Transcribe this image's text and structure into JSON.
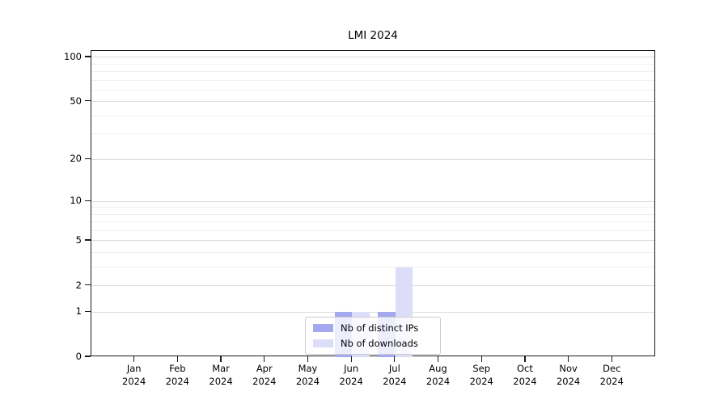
{
  "chart_data": {
    "type": "bar",
    "title": "LMI 2024",
    "categories": [
      "Jan\n2024",
      "Feb\n2024",
      "Mar\n2024",
      "Apr\n2024",
      "May\n2024",
      "Jun\n2024",
      "Jul\n2024",
      "Aug\n2024",
      "Sep\n2024",
      "Oct\n2024",
      "Nov\n2024",
      "Dec\n2024"
    ],
    "series": [
      {
        "name": "Nb of distinct IPs",
        "color": "#a4a8ee",
        "values": [
          0,
          0,
          0,
          0,
          0,
          1,
          1,
          0,
          0,
          0,
          0,
          0
        ]
      },
      {
        "name": "Nb of downloads",
        "color": "#dcddf9",
        "values": [
          0,
          0,
          0,
          0,
          0,
          1,
          3,
          0,
          0,
          0,
          0,
          0
        ]
      }
    ],
    "yscale": "log1p",
    "ylim": [
      0,
      110
    ],
    "y_ticks": [
      {
        "value": 0,
        "label": "0"
      },
      {
        "value": 1,
        "label": "1"
      },
      {
        "value": 2,
        "label": "2"
      },
      {
        "value": 5,
        "label": "5"
      },
      {
        "value": 10,
        "label": "10"
      },
      {
        "value": 20,
        "label": "20"
      },
      {
        "value": 50,
        "label": "50"
      },
      {
        "value": 100,
        "label": "100"
      }
    ],
    "y_minor_ticks": [
      3,
      4,
      6,
      7,
      8,
      9,
      30,
      40,
      60,
      70,
      80,
      90
    ],
    "grid": "horizontal",
    "legend_position": "lower-center"
  },
  "colors": {
    "grid_major": "#dcdcdc",
    "grid_minor": "#f0f0f0",
    "axis": "#1a1a1a",
    "legend_border": "#cccccc"
  }
}
